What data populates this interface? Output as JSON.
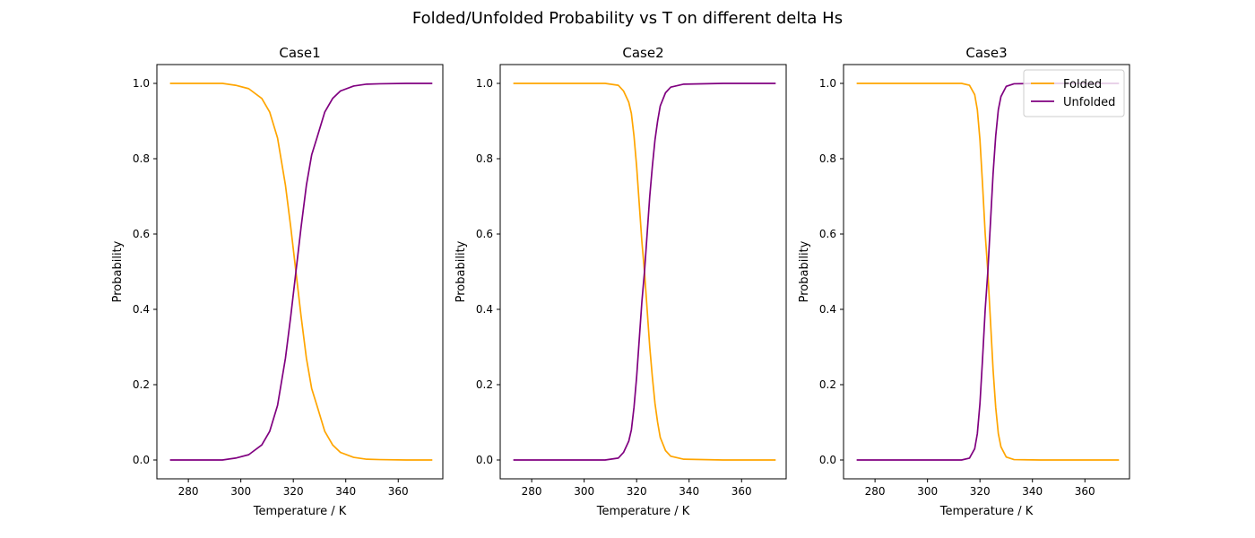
{
  "figure_title": "Folded/Unfolded Probability vs T on different delta Hs",
  "colors": {
    "Folded": "#ffa500",
    "Unfolded": "#800080"
  },
  "chart_data": [
    {
      "type": "line",
      "title": "Case1",
      "xlabel": "Temperature / K",
      "ylabel": "Probability",
      "xlim": [
        268,
        377
      ],
      "ylim": [
        -0.05,
        1.05
      ],
      "xticks": [
        280,
        300,
        320,
        340,
        360
      ],
      "yticks": [
        0.0,
        0.2,
        0.4,
        0.6,
        0.8,
        1.0
      ],
      "x": [
        273,
        283,
        293,
        298,
        303,
        308,
        311,
        314,
        317,
        319,
        321,
        323,
        325,
        327,
        329,
        332,
        335,
        338,
        343,
        348,
        353,
        363,
        373
      ],
      "series": [
        {
          "name": "Folded",
          "values": [
            1.0,
            1.0,
            1.0,
            0.995,
            0.986,
            0.96,
            0.924,
            0.855,
            0.73,
            0.62,
            0.5,
            0.38,
            0.27,
            0.19,
            0.145,
            0.076,
            0.04,
            0.02,
            0.007,
            0.002,
            0.001,
            0.0,
            0.0
          ]
        },
        {
          "name": "Unfolded",
          "values": [
            0.0,
            0.0,
            0.0,
            0.005,
            0.014,
            0.04,
            0.076,
            0.145,
            0.27,
            0.38,
            0.5,
            0.62,
            0.73,
            0.81,
            0.855,
            0.924,
            0.96,
            0.98,
            0.993,
            0.998,
            0.999,
            1.0,
            1.0
          ]
        }
      ]
    },
    {
      "type": "line",
      "title": "Case2",
      "xlabel": "Temperature / K",
      "ylabel": "Probability",
      "xlim": [
        268,
        377
      ],
      "ylim": [
        -0.05,
        1.05
      ],
      "xticks": [
        280,
        300,
        320,
        340,
        360
      ],
      "yticks": [
        0.0,
        0.2,
        0.4,
        0.6,
        0.8,
        1.0
      ],
      "x": [
        273,
        293,
        308,
        313,
        315,
        317,
        318,
        319,
        320,
        321,
        322,
        323,
        324,
        325,
        326,
        327,
        328,
        329,
        331,
        333,
        338,
        353,
        373
      ],
      "series": [
        {
          "name": "Folded",
          "values": [
            1.0,
            1.0,
            1.0,
            0.995,
            0.98,
            0.95,
            0.92,
            0.86,
            0.78,
            0.68,
            0.58,
            0.5,
            0.4,
            0.3,
            0.22,
            0.15,
            0.1,
            0.06,
            0.025,
            0.01,
            0.002,
            0.0,
            0.0
          ]
        },
        {
          "name": "Unfolded",
          "values": [
            0.0,
            0.0,
            0.0,
            0.005,
            0.02,
            0.05,
            0.08,
            0.14,
            0.22,
            0.32,
            0.42,
            0.5,
            0.6,
            0.7,
            0.78,
            0.85,
            0.9,
            0.94,
            0.975,
            0.99,
            0.998,
            1.0,
            1.0
          ]
        }
      ]
    },
    {
      "type": "line",
      "title": "Case3",
      "xlabel": "Temperature / K",
      "ylabel": "Probability",
      "xlim": [
        268,
        377
      ],
      "ylim": [
        -0.05,
        1.05
      ],
      "xticks": [
        280,
        300,
        320,
        340,
        360
      ],
      "yticks": [
        0.0,
        0.2,
        0.4,
        0.6,
        0.8,
        1.0
      ],
      "legend": {
        "loc": "upper right",
        "entries": [
          "Folded",
          "Unfolded"
        ]
      },
      "x": [
        273,
        303,
        313,
        316,
        318,
        319,
        320,
        321,
        322,
        323,
        324,
        325,
        326,
        327,
        328,
        330,
        333,
        343,
        373
      ],
      "series": [
        {
          "name": "Folded",
          "values": [
            1.0,
            1.0,
            1.0,
            0.995,
            0.97,
            0.93,
            0.85,
            0.73,
            0.6,
            0.5,
            0.37,
            0.24,
            0.14,
            0.07,
            0.035,
            0.008,
            0.001,
            0.0,
            0.0
          ]
        },
        {
          "name": "Unfolded",
          "values": [
            0.0,
            0.0,
            0.0,
            0.005,
            0.03,
            0.07,
            0.15,
            0.27,
            0.4,
            0.5,
            0.63,
            0.76,
            0.86,
            0.93,
            0.965,
            0.992,
            0.999,
            1.0,
            1.0
          ]
        }
      ]
    }
  ]
}
